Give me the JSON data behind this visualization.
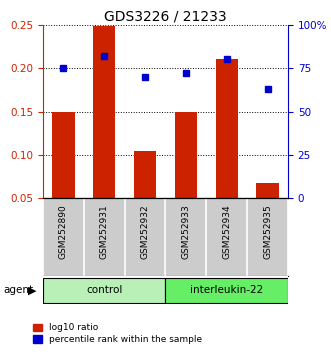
{
  "title": "GDS3226 / 21233",
  "samples": [
    "GSM252890",
    "GSM252931",
    "GSM252932",
    "GSM252933",
    "GSM252934",
    "GSM252935"
  ],
  "log10_ratio": [
    0.15,
    0.249,
    0.104,
    0.15,
    0.211,
    0.068
  ],
  "percentile_rank": [
    75,
    82,
    70,
    72,
    80,
    63
  ],
  "groups": [
    {
      "label": "control",
      "samples": [
        0,
        1,
        2
      ],
      "color": "#b8f0b8"
    },
    {
      "label": "interleukin-22",
      "samples": [
        3,
        4,
        5
      ],
      "color": "#66ee66"
    }
  ],
  "bar_color": "#cc2200",
  "dot_color": "#0000cc",
  "left_ylim": [
    0.05,
    0.25
  ],
  "left_yticks": [
    0.05,
    0.1,
    0.15,
    0.2,
    0.25
  ],
  "left_yticklabels": [
    "0.05",
    "0.10",
    "0.15",
    "0.20",
    "0.25"
  ],
  "right_ylim": [
    0,
    100
  ],
  "right_yticks": [
    0,
    25,
    50,
    75,
    100
  ],
  "right_yticklabels": [
    "0",
    "25",
    "50",
    "75",
    "100%"
  ],
  "legend_items": [
    {
      "label": "log10 ratio",
      "color": "#cc2200"
    },
    {
      "label": "percentile rank within the sample",
      "color": "#0000cc"
    }
  ],
  "bar_width": 0.55,
  "dot_markersize": 5,
  "background_color": "#ffffff",
  "sample_box_color": "#cccccc",
  "agent_label": "agent"
}
